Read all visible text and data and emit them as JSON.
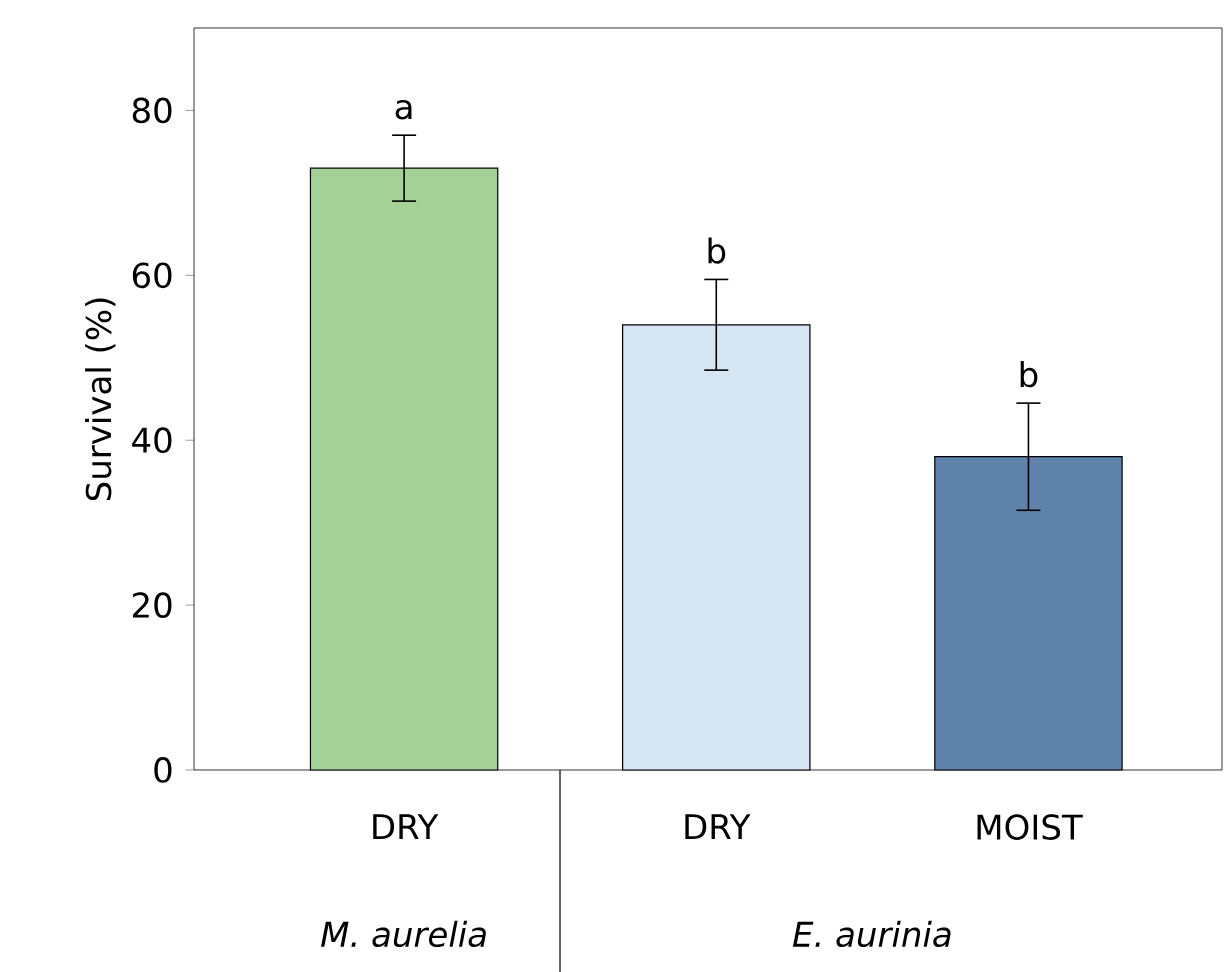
{
  "chart_data": {
    "type": "bar",
    "ylabel": "Survival (%)",
    "categories": [
      "DRY",
      "DRY",
      "MOIST"
    ],
    "values": [
      73,
      54,
      38
    ],
    "colors": [
      "#a3d196",
      "#d6e6f4",
      "#5f82ab"
    ],
    "errors": [
      4,
      5.5,
      6.5
    ],
    "ylim": [
      0,
      90
    ],
    "yticks": [
      0,
      20,
      40,
      60,
      80
    ],
    "annotations": [
      "a",
      "b",
      "b",
      "M. aurelia",
      "E. aurinia"
    ]
  }
}
